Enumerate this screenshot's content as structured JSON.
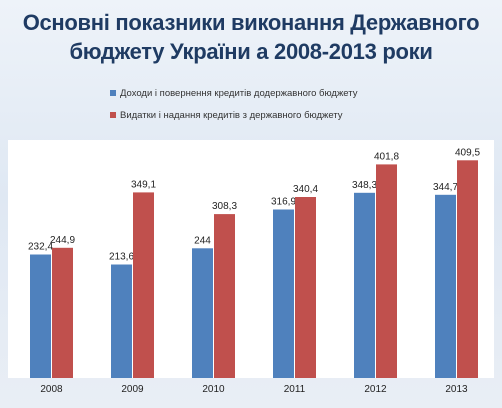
{
  "title": {
    "line1": "Основні показники виконання Державного",
    "line2": "бюджету України а 2008-2013 роки"
  },
  "colors": {
    "series1": "#4f81bd",
    "series2": "#c0504d"
  },
  "chart_data": {
    "type": "bar",
    "categories": [
      "2008",
      "2009",
      "2010",
      "2011",
      "2012",
      "2013"
    ],
    "series": [
      {
        "name": "Доходи і повернення кредитів додержавного бюджету",
        "values": [
          232.4,
          213.6,
          244,
          316.9,
          348.3,
          344.7
        ],
        "labels": [
          "232,4",
          "213,6",
          "244",
          "316,9",
          "348,3",
          "344,7"
        ]
      },
      {
        "name": "Видатки і надання кредитів з державного бюджету",
        "values": [
          244.9,
          349.1,
          308.3,
          340.4,
          401.8,
          409.5
        ],
        "labels": [
          "244,9",
          "349,1",
          "308,3",
          "340,4",
          "401,8",
          "409,5"
        ]
      }
    ],
    "ylim": [
      0,
      450
    ],
    "grid": false,
    "legend_position": "top-left"
  }
}
